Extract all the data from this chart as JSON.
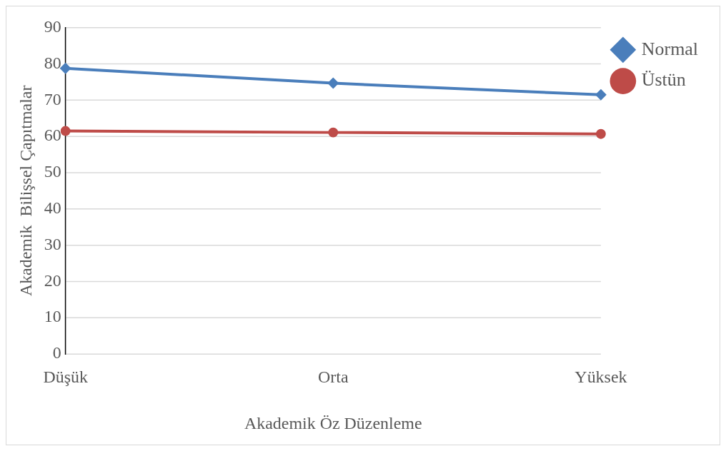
{
  "chart_data": {
    "type": "line",
    "xlabel": "Akademik Öz Düzenleme",
    "ylabel": "Akademik  Bilişsel Çapıtmalar",
    "categories": [
      "Düşük",
      "Orta",
      "Yüksek"
    ],
    "series": [
      {
        "name": "Normal",
        "color": "#4a7ebb",
        "marker": "diamond",
        "values": [
          78.8,
          74.7,
          71.5
        ]
      },
      {
        "name": "Üstün",
        "color": "#be4b48",
        "marker": "circle",
        "values": [
          61.5,
          61.1,
          60.7
        ]
      }
    ],
    "ylim": [
      0,
      90
    ],
    "yticks": [
      0,
      10,
      20,
      30,
      40,
      50,
      60,
      70,
      80,
      90
    ],
    "grid": "y",
    "legend": "right",
    "line_style": "solid"
  }
}
